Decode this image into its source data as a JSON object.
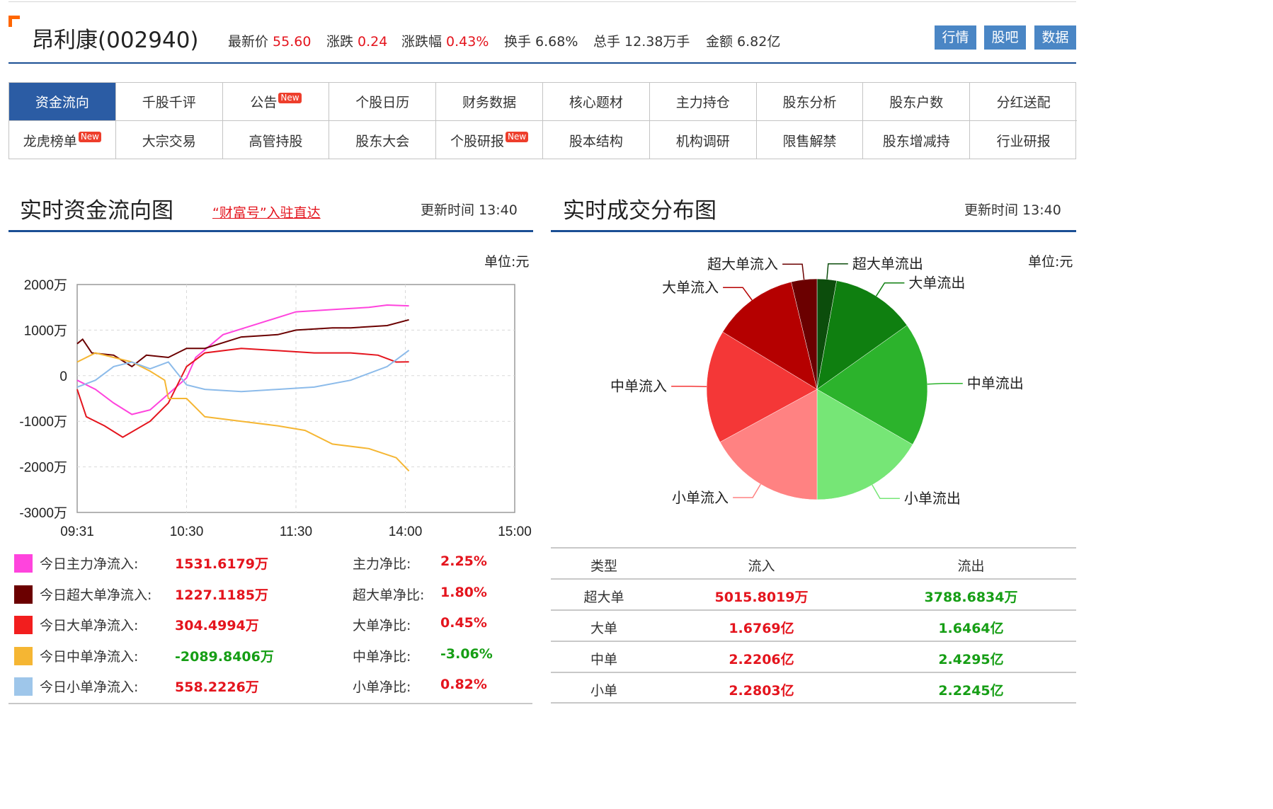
{
  "header": {
    "stock_name": "昂利康(002940)",
    "quotes": [
      {
        "label": "最新价",
        "value": "55.60",
        "color": "#e4141d"
      },
      {
        "label": "涨跌",
        "value": "0.24",
        "color": "#e4141d"
      },
      {
        "label": "涨跌幅",
        "value": "0.43%",
        "color": "#e4141d"
      },
      {
        "label": "换手",
        "value": "6.68%",
        "color": "#333333"
      },
      {
        "label": "总手",
        "value": "12.38万手",
        "color": "#333333"
      },
      {
        "label": "金额",
        "value": "6.82亿",
        "color": "#333333"
      }
    ],
    "buttons": [
      "行情",
      "股吧",
      "数据"
    ]
  },
  "nav": {
    "row1": [
      {
        "label": "资金流向",
        "active": true,
        "is_new": false
      },
      {
        "label": "千股千评",
        "active": false,
        "is_new": false
      },
      {
        "label": "公告",
        "active": false,
        "is_new": true
      },
      {
        "label": "个股日历",
        "active": false,
        "is_new": false
      },
      {
        "label": "财务数据",
        "active": false,
        "is_new": false
      },
      {
        "label": "核心题材",
        "active": false,
        "is_new": false
      },
      {
        "label": "主力持仓",
        "active": false,
        "is_new": false
      },
      {
        "label": "股东分析",
        "active": false,
        "is_new": false
      },
      {
        "label": "股东户数",
        "active": false,
        "is_new": false
      },
      {
        "label": "分红送配",
        "active": false,
        "is_new": false
      }
    ],
    "row2": [
      {
        "label": "龙虎榜单",
        "active": false,
        "is_new": true
      },
      {
        "label": "大宗交易",
        "active": false,
        "is_new": false
      },
      {
        "label": "高管持股",
        "active": false,
        "is_new": false
      },
      {
        "label": "股东大会",
        "active": false,
        "is_new": false
      },
      {
        "label": "个股研报",
        "active": false,
        "is_new": true
      },
      {
        "label": "股本结构",
        "active": false,
        "is_new": false
      },
      {
        "label": "机构调研",
        "active": false,
        "is_new": false
      },
      {
        "label": "限售解禁",
        "active": false,
        "is_new": false
      },
      {
        "label": "股东增减持",
        "active": false,
        "is_new": false
      },
      {
        "label": "行业研报",
        "active": false,
        "is_new": false
      }
    ],
    "new_badge": "New"
  },
  "flow_section": {
    "title": "实时资金流向图",
    "link": "“财富号”入驻直达",
    "update_time": "更新时间 13:40",
    "unit": "单位:元"
  },
  "dist_section": {
    "title": "实时成交分布图",
    "update_time": "更新时间 13:40",
    "unit": "单位:元"
  },
  "chart_data": [
    {
      "type": "line",
      "y_ticks": [
        "2000万",
        "1000万",
        "0",
        "-1000万",
        "-2000万",
        "-3000万"
      ],
      "ylim": [
        -3000,
        2000
      ],
      "y_unit": "万元",
      "x_ticks": [
        "09:31",
        "10:30",
        "11:30",
        "14:00",
        "15:00"
      ],
      "x_unit": "minutes since 09:31 (session time, lunch break excluded)",
      "xlim": [
        0,
        240
      ],
      "grid": true,
      "legend_position": "bottom",
      "series": [
        {
          "name": "今日主力净流入",
          "color": "#ff44dd",
          "points": [
            [
              0,
              -100
            ],
            [
              10,
              -300
            ],
            [
              20,
              -600
            ],
            [
              30,
              -850
            ],
            [
              40,
              -750
            ],
            [
              50,
              -400
            ],
            [
              60,
              -50
            ],
            [
              65,
              400
            ],
            [
              80,
              900
            ],
            [
              100,
              1150
            ],
            [
              120,
              1400
            ],
            [
              140,
              1450
            ],
            [
              160,
              1500
            ],
            [
              170,
              1550
            ],
            [
              182,
              1532
            ]
          ]
        },
        {
          "name": "今日超大单净流入",
          "color": "#6b0000",
          "points": [
            [
              0,
              700
            ],
            [
              3,
              800
            ],
            [
              8,
              500
            ],
            [
              20,
              450
            ],
            [
              30,
              200
            ],
            [
              38,
              450
            ],
            [
              50,
              400
            ],
            [
              60,
              600
            ],
            [
              70,
              600
            ],
            [
              90,
              850
            ],
            [
              110,
              900
            ],
            [
              120,
              1000
            ],
            [
              140,
              1050
            ],
            [
              150,
              1050
            ],
            [
              170,
              1100
            ],
            [
              182,
              1227
            ]
          ]
        },
        {
          "name": "今日大单净流入",
          "color": "#e4141d",
          "points": [
            [
              0,
              -300
            ],
            [
              5,
              -900
            ],
            [
              15,
              -1100
            ],
            [
              25,
              -1350
            ],
            [
              40,
              -1000
            ],
            [
              50,
              -600
            ],
            [
              60,
              200
            ],
            [
              70,
              500
            ],
            [
              90,
              600
            ],
            [
              110,
              550
            ],
            [
              130,
              500
            ],
            [
              150,
              500
            ],
            [
              165,
              450
            ],
            [
              175,
              300
            ],
            [
              182,
              304
            ]
          ]
        },
        {
          "name": "今日中单净流入",
          "color": "#f5b633",
          "points": [
            [
              0,
              300
            ],
            [
              10,
              500
            ],
            [
              20,
              400
            ],
            [
              30,
              300
            ],
            [
              40,
              100
            ],
            [
              48,
              -100
            ],
            [
              50,
              -500
            ],
            [
              60,
              -500
            ],
            [
              70,
              -900
            ],
            [
              90,
              -1000
            ],
            [
              110,
              -1100
            ],
            [
              125,
              -1200
            ],
            [
              140,
              -1500
            ],
            [
              160,
              -1600
            ],
            [
              175,
              -1800
            ],
            [
              182,
              -2090
            ]
          ]
        },
        {
          "name": "今日小单净流入",
          "color": "#8cbbea",
          "points": [
            [
              0,
              -250
            ],
            [
              10,
              -100
            ],
            [
              20,
              200
            ],
            [
              30,
              300
            ],
            [
              40,
              150
            ],
            [
              50,
              300
            ],
            [
              60,
              -200
            ],
            [
              70,
              -300
            ],
            [
              90,
              -350
            ],
            [
              110,
              -300
            ],
            [
              130,
              -250
            ],
            [
              150,
              -100
            ],
            [
              170,
              200
            ],
            [
              182,
              558
            ]
          ]
        }
      ]
    },
    {
      "type": "pie",
      "slices": [
        {
          "name": "超大单流出",
          "value": 3788.6834,
          "color": "#0c4d0c"
        },
        {
          "name": "大单流出",
          "value": 16464,
          "color": "#0f7f10"
        },
        {
          "name": "中单流出",
          "value": 24295,
          "color": "#2cb32c"
        },
        {
          "name": "小单流出",
          "value": 22245,
          "color": "#76e676"
        },
        {
          "name": "小单流入",
          "value": 22803,
          "color": "#ff8282"
        },
        {
          "name": "中单流入",
          "value": 22206,
          "color": "#f43737"
        },
        {
          "name": "大单流入",
          "value": 16769,
          "color": "#b50000"
        },
        {
          "name": "超大单流入",
          "value": 5015.8019,
          "color": "#6b0000"
        }
      ],
      "value_unit": "万元"
    }
  ],
  "legend": [
    {
      "label": "今日主力净流入:",
      "value": "1531.6179万",
      "value_color": "red",
      "ratio_label": "主力净比:",
      "ratio": "2.25%",
      "ratio_color": "red",
      "color": "#ff44dd"
    },
    {
      "label": "今日超大单净流入:",
      "value": "1227.1185万",
      "value_color": "red",
      "ratio_label": "超大单净比:",
      "ratio": "1.80%",
      "ratio_color": "red",
      "color": "#6b0000"
    },
    {
      "label": "今日大单净流入:",
      "value": "304.4994万",
      "value_color": "red",
      "ratio_label": "大单净比:",
      "ratio": "0.45%",
      "ratio_color": "red",
      "color": "#f21e1e"
    },
    {
      "label": "今日中单净流入:",
      "value": "-2089.8406万",
      "value_color": "green",
      "ratio_label": "中单净比:",
      "ratio": "-3.06%",
      "ratio_color": "green",
      "color": "#f5b633"
    },
    {
      "label": "今日小单净流入:",
      "value": "558.2226万",
      "value_color": "red",
      "ratio_label": "小单净比:",
      "ratio": "0.82%",
      "ratio_color": "red",
      "color": "#9ec6ea"
    }
  ],
  "dist_table": {
    "headers": [
      "类型",
      "流入",
      "流出"
    ],
    "rows": [
      {
        "type": "超大单",
        "in": "5015.8019万",
        "out": "3788.6834万"
      },
      {
        "type": "大单",
        "in": "1.6769亿",
        "out": "1.6464亿"
      },
      {
        "type": "中单",
        "in": "2.2206亿",
        "out": "2.4295亿"
      },
      {
        "type": "小单",
        "in": "2.2803亿",
        "out": "2.2245亿"
      }
    ]
  }
}
